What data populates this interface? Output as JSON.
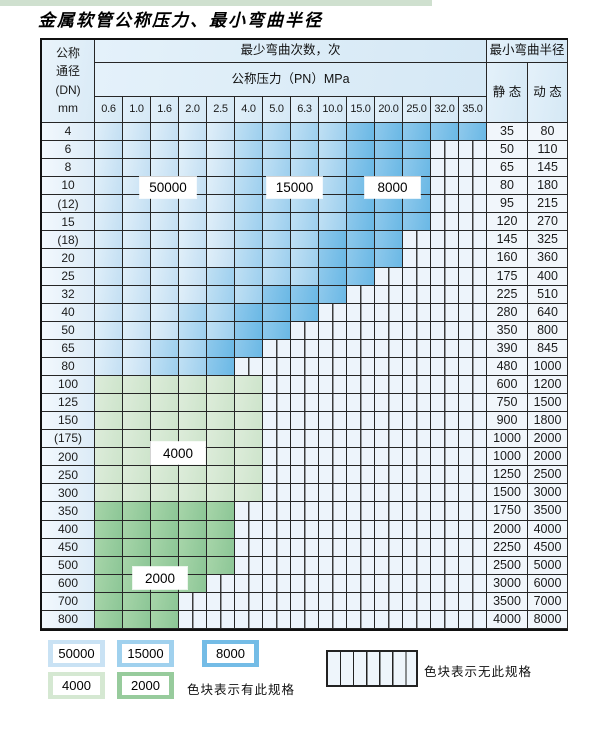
{
  "title": "金属软管公称压力、最小弯曲半径",
  "table": {
    "corner": {
      "l1": "公称",
      "l2": "通径",
      "l3": "(DN)",
      "l4": "mm"
    },
    "cycles_header": "最少弯曲次数，次",
    "pressure_header": "公称压力（PN）MPa",
    "radius_header": "最小弯曲半径",
    "static_header": "静 态",
    "dynamic_header": "动 态",
    "pressure_columns": [
      "0.6",
      "1.0",
      "1.6",
      "2.0",
      "2.5",
      "4.0",
      "5.0",
      "6.3",
      "10.0",
      "15.0",
      "20.0",
      "25.0",
      "32.0",
      "35.0"
    ],
    "overlay_labels": [
      "50000",
      "15000",
      "8000",
      "4000",
      "2000"
    ],
    "rows": [
      {
        "dn": "4",
        "static": "35",
        "dynamic": "80",
        "zones": {
          "blue": [
            5,
            9,
            14
          ]
        }
      },
      {
        "dn": "6",
        "static": "50",
        "dynamic": "110",
        "zones": {
          "blue": [
            5,
            9,
            12
          ]
        }
      },
      {
        "dn": "8",
        "static": "65",
        "dynamic": "145",
        "zones": {
          "blue": [
            5,
            9,
            12
          ]
        }
      },
      {
        "dn": "10",
        "static": "80",
        "dynamic": "180",
        "zones": {
          "blue": [
            5,
            9,
            12
          ]
        }
      },
      {
        "dn": "(12)",
        "static": "95",
        "dynamic": "215",
        "zones": {
          "blue": [
            5,
            9,
            12
          ]
        }
      },
      {
        "dn": "15",
        "static": "120",
        "dynamic": "270",
        "zones": {
          "blue": [
            5,
            9,
            12
          ]
        }
      },
      {
        "dn": "(18)",
        "static": "145",
        "dynamic": "325",
        "zones": {
          "blue": [
            5,
            8,
            11
          ]
        }
      },
      {
        "dn": "20",
        "static": "160",
        "dynamic": "360",
        "zones": {
          "blue": [
            5,
            8,
            11
          ]
        }
      },
      {
        "dn": "25",
        "static": "175",
        "dynamic": "400",
        "zones": {
          "blue": [
            4,
            8,
            10
          ]
        }
      },
      {
        "dn": "32",
        "static": "225",
        "dynamic": "510",
        "zones": {
          "blue": [
            4,
            6,
            9
          ]
        }
      },
      {
        "dn": "40",
        "static": "280",
        "dynamic": "640",
        "zones": {
          "blue": [
            3,
            5,
            8
          ]
        }
      },
      {
        "dn": "50",
        "static": "350",
        "dynamic": "800",
        "zones": {
          "blue": [
            3,
            5,
            7
          ]
        }
      },
      {
        "dn": "65",
        "static": "390",
        "dynamic": "845",
        "zones": {
          "blue": [
            2,
            4,
            6
          ]
        }
      },
      {
        "dn": "80",
        "static": "480",
        "dynamic": "1000",
        "zones": {
          "blue": [
            2,
            4,
            5
          ]
        }
      },
      {
        "dn": "100",
        "static": "600",
        "dynamic": "1200",
        "zones": {
          "green4": 6
        }
      },
      {
        "dn": "125",
        "static": "750",
        "dynamic": "1500",
        "zones": {
          "green4": 6
        }
      },
      {
        "dn": "150",
        "static": "900",
        "dynamic": "1800",
        "zones": {
          "green4": 6
        }
      },
      {
        "dn": "(175)",
        "static": "1000",
        "dynamic": "2000",
        "zones": {
          "green4": 6
        }
      },
      {
        "dn": "200",
        "static": "1000",
        "dynamic": "2000",
        "zones": {
          "green4": 6
        }
      },
      {
        "dn": "250",
        "static": "1250",
        "dynamic": "2500",
        "zones": {
          "green4": 6
        }
      },
      {
        "dn": "300",
        "static": "1500",
        "dynamic": "3000",
        "zones": {
          "green4": 6
        }
      },
      {
        "dn": "350",
        "static": "1750",
        "dynamic": "3500",
        "zones": {
          "green2": 5
        }
      },
      {
        "dn": "400",
        "static": "2000",
        "dynamic": "4000",
        "zones": {
          "green2": 5
        }
      },
      {
        "dn": "450",
        "static": "2250",
        "dynamic": "4500",
        "zones": {
          "green2": 5
        }
      },
      {
        "dn": "500",
        "static": "2500",
        "dynamic": "5000",
        "zones": {
          "green2": 5
        }
      },
      {
        "dn": "600",
        "static": "3000",
        "dynamic": "6000",
        "zones": {
          "green2": 4
        }
      },
      {
        "dn": "700",
        "static": "3500",
        "dynamic": "7000",
        "zones": {
          "green2": 3
        }
      },
      {
        "dn": "800",
        "static": "4000",
        "dynamic": "8000",
        "zones": {
          "green2": 3
        }
      }
    ]
  },
  "legend": {
    "items": [
      {
        "label": "50000",
        "color": "#c9e2f4"
      },
      {
        "label": "15000",
        "color": "#a0d1ee"
      },
      {
        "label": "8000",
        "color": "#74bce6"
      },
      {
        "label": "4000",
        "color": "#d5e8d2"
      },
      {
        "label": "2000",
        "color": "#97cb9c"
      }
    ],
    "has_spec_note": "色块表示有此规格",
    "no_spec_note": "色块表示无此规格"
  },
  "colors": {
    "zone_50000": "#c9e2f4",
    "zone_15000": "#a0d1ee",
    "zone_8000": "#74bce6",
    "zone_4000": "#d5e8d2",
    "zone_2000": "#97cb9c",
    "hatch_background": "#edf4fb",
    "header_background": "#d9eaf6",
    "grid_line": "#262626"
  }
}
